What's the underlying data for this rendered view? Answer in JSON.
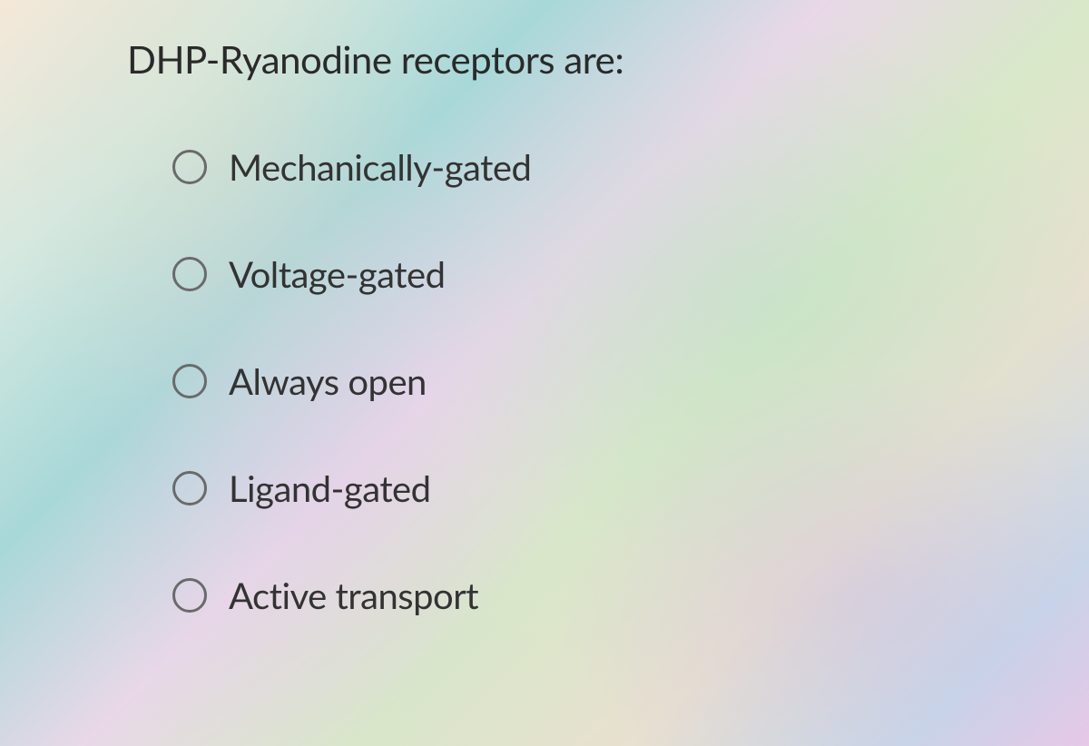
{
  "question": {
    "text": "DHP-Ryanodine receptors are:",
    "text_color": "#2a2a2a",
    "font_size": 42
  },
  "options": [
    {
      "label": "Mechanically-gated",
      "selected": false
    },
    {
      "label": "Voltage-gated",
      "selected": false
    },
    {
      "label": "Always open",
      "selected": false
    },
    {
      "label": "Ligand-gated",
      "selected": false
    },
    {
      "label": "Active transport",
      "selected": false
    }
  ],
  "styling": {
    "radio_border_color": "#6a6a6a",
    "radio_size": 38,
    "option_text_color": "#333333",
    "option_font_size": 40,
    "option_gap": 70,
    "background_gradient_colors": [
      "#f5e8d8",
      "#d4e8e0",
      "#a8d8d8",
      "#e8d8e8",
      "#d8e8c8",
      "#e8e0d0",
      "#c8d8e8",
      "#e8c8e8"
    ]
  }
}
